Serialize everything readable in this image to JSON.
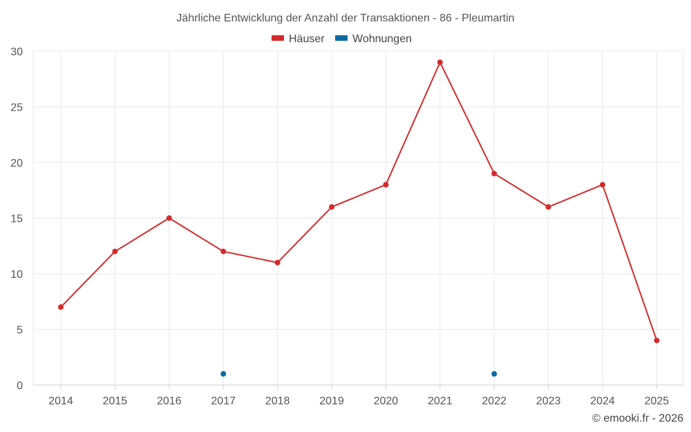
{
  "chart_data": {
    "type": "line",
    "title": "Jährliche Entwicklung der Anzahl der Transaktionen - 86 - Pleumartin",
    "categories": [
      "2014",
      "2015",
      "2016",
      "2017",
      "2018",
      "2019",
      "2020",
      "2021",
      "2022",
      "2023",
      "2024",
      "2025"
    ],
    "series": [
      {
        "name": "Häuser",
        "color": "#d42a2a",
        "values": [
          7,
          12,
          15,
          12,
          11,
          16,
          18,
          29,
          19,
          16,
          18,
          4
        ]
      },
      {
        "name": "Wohnungen",
        "color": "#0b6aa2",
        "values": [
          null,
          null,
          null,
          1,
          null,
          null,
          null,
          null,
          1,
          null,
          null,
          null
        ]
      }
    ],
    "ylim": [
      0,
      30
    ],
    "yticks": [
      0,
      5,
      10,
      15,
      20,
      25,
      30
    ],
    "grid": true,
    "legend_position": "top-center"
  },
  "credit": "© emooki.fr - 2026"
}
